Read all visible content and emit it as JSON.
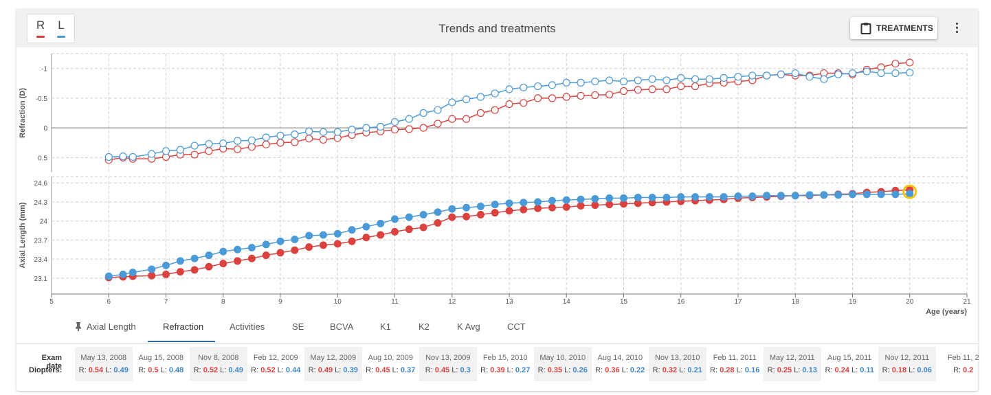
{
  "header": {
    "eye_right": "R",
    "eye_left": "L",
    "title": "Trends and treatments",
    "treatments_label": "TREATMENTS"
  },
  "colors": {
    "right_eye": "#d9423f",
    "left_eye": "#4a9ad8",
    "highlight": "#f4c20d"
  },
  "chart_data": {
    "type": "line",
    "xlabel": "Age (years)",
    "xlim": [
      5,
      21
    ],
    "x_ticks": [
      "5",
      "6",
      "7",
      "8",
      "9",
      "10",
      "11",
      "12",
      "13",
      "14",
      "15",
      "16",
      "17",
      "18",
      "19",
      "20",
      "21"
    ],
    "panels": [
      {
        "name": "refraction",
        "ylabel": "Refraction (D)",
        "ylim": [
          0.75,
          -1.25
        ],
        "y_ticks": [
          {
            "v": -1,
            "t": "-1"
          },
          {
            "v": -0.5,
            "t": "-0.5"
          },
          {
            "v": 0,
            "t": "0"
          },
          {
            "v": 0.5,
            "t": "0.5"
          }
        ],
        "marker": "open",
        "series": [
          {
            "name": "R",
            "x": [
              6,
              6.25,
              6.42,
              6.75,
              7,
              7.25,
              7.5,
              7.75,
              8,
              8.25,
              8.5,
              8.75,
              9,
              9.25,
              9.5,
              9.75,
              10,
              10.25,
              10.5,
              10.75,
              11,
              11.25,
              11.5,
              11.75,
              12,
              12.25,
              12.5,
              12.75,
              13,
              13.25,
              13.5,
              13.75,
              14,
              14.25,
              14.5,
              14.75,
              15,
              15.25,
              15.5,
              15.75,
              16,
              16.25,
              16.5,
              16.75,
              17,
              17.25,
              17.5,
              17.75,
              18,
              18.25,
              18.5,
              18.75,
              19,
              19.25,
              19.5,
              19.75,
              20
            ],
            "y": [
              0.54,
              0.5,
              0.52,
              0.52,
              0.49,
              0.45,
              0.45,
              0.39,
              0.35,
              0.36,
              0.32,
              0.28,
              0.25,
              0.24,
              0.18,
              0.2,
              0.17,
              0.12,
              0.08,
              0.06,
              0.03,
              0.02,
              0.0,
              -0.07,
              -0.15,
              -0.15,
              -0.25,
              -0.3,
              -0.4,
              -0.42,
              -0.5,
              -0.5,
              -0.52,
              -0.54,
              -0.55,
              -0.56,
              -0.62,
              -0.64,
              -0.65,
              -0.65,
              -0.7,
              -0.7,
              -0.75,
              -0.76,
              -0.78,
              -0.8,
              -0.88,
              -0.9,
              -0.88,
              -0.88,
              -0.92,
              -0.92,
              -0.9,
              -0.98,
              -1.02,
              -1.08,
              -1.1
            ]
          },
          {
            "name": "L",
            "x": [
              6,
              6.25,
              6.42,
              6.75,
              7,
              7.25,
              7.5,
              7.75,
              8,
              8.25,
              8.5,
              8.75,
              9,
              9.25,
              9.5,
              9.75,
              10,
              10.25,
              10.5,
              10.75,
              11,
              11.25,
              11.5,
              11.75,
              12,
              12.25,
              12.5,
              12.75,
              13,
              13.25,
              13.5,
              13.75,
              14,
              14.25,
              14.5,
              14.75,
              15,
              15.25,
              15.5,
              15.75,
              16,
              16.25,
              16.5,
              16.75,
              17,
              17.25,
              17.5,
              17.75,
              18,
              18.25,
              18.5,
              18.75,
              19,
              19.25,
              19.5,
              19.75,
              20
            ],
            "y": [
              0.49,
              0.48,
              0.49,
              0.44,
              0.39,
              0.37,
              0.3,
              0.27,
              0.26,
              0.22,
              0.21,
              0.16,
              0.13,
              0.11,
              0.06,
              0.07,
              0.07,
              0.03,
              0.0,
              -0.02,
              -0.1,
              -0.15,
              -0.25,
              -0.3,
              -0.43,
              -0.48,
              -0.52,
              -0.58,
              -0.65,
              -0.68,
              -0.7,
              -0.72,
              -0.76,
              -0.76,
              -0.78,
              -0.8,
              -0.78,
              -0.8,
              -0.82,
              -0.8,
              -0.84,
              -0.82,
              -0.82,
              -0.84,
              -0.86,
              -0.88,
              -0.88,
              -0.9,
              -0.92,
              -0.86,
              -0.82,
              -0.9,
              -0.92,
              -0.95,
              -0.92,
              -0.92,
              -0.93
            ]
          }
        ]
      },
      {
        "name": "axial_length",
        "ylabel": "Axial Length (mm)",
        "ylim": [
          22.85,
          24.7
        ],
        "y_ticks": [
          {
            "v": 23.1,
            "t": "23.1"
          },
          {
            "v": 23.4,
            "t": "23.4"
          },
          {
            "v": 23.7,
            "t": "23.7"
          },
          {
            "v": 24,
            "t": "24"
          },
          {
            "v": 24.3,
            "t": "24.3"
          },
          {
            "v": 24.6,
            "t": "24.6"
          }
        ],
        "marker": "filled",
        "series": [
          {
            "name": "R",
            "x": [
              6,
              6.25,
              6.42,
              6.75,
              7,
              7.25,
              7.5,
              7.75,
              8,
              8.25,
              8.5,
              8.75,
              9,
              9.25,
              9.5,
              9.75,
              10,
              10.25,
              10.5,
              10.75,
              11,
              11.25,
              11.5,
              11.75,
              12,
              12.25,
              12.5,
              12.75,
              13,
              13.25,
              13.5,
              13.75,
              14,
              14.25,
              14.5,
              14.75,
              15,
              15.25,
              15.5,
              15.75,
              16,
              16.25,
              16.5,
              16.75,
              17,
              17.25,
              17.5,
              17.75,
              18,
              18.25,
              18.5,
              18.75,
              19,
              19.25,
              19.5,
              19.75,
              20
            ],
            "y": [
              23.11,
              23.12,
              23.13,
              23.14,
              23.16,
              23.2,
              23.23,
              23.28,
              23.33,
              23.37,
              23.41,
              23.46,
              23.5,
              23.54,
              23.59,
              23.62,
              23.64,
              23.68,
              23.74,
              23.78,
              23.83,
              23.87,
              23.9,
              23.97,
              24.06,
              24.07,
              24.1,
              24.13,
              24.16,
              24.18,
              24.2,
              24.21,
              24.22,
              24.24,
              24.25,
              24.26,
              24.27,
              24.28,
              24.29,
              24.3,
              24.31,
              24.32,
              24.33,
              24.34,
              24.36,
              24.37,
              24.38,
              24.39,
              24.4,
              24.4,
              24.41,
              24.42,
              24.43,
              24.45,
              24.46,
              24.48,
              24.49
            ]
          },
          {
            "name": "L",
            "x": [
              6,
              6.25,
              6.42,
              6.75,
              7,
              7.25,
              7.5,
              7.75,
              8,
              8.25,
              8.5,
              8.75,
              9,
              9.25,
              9.5,
              9.75,
              10,
              10.25,
              10.5,
              10.75,
              11,
              11.25,
              11.5,
              11.75,
              12,
              12.25,
              12.5,
              12.75,
              13,
              13.25,
              13.5,
              13.75,
              14,
              14.25,
              14.5,
              14.75,
              15,
              15.25,
              15.5,
              15.75,
              16,
              16.25,
              16.5,
              16.75,
              17,
              17.25,
              17.5,
              17.75,
              18,
              18.25,
              18.5,
              18.75,
              19,
              19.25,
              19.5,
              19.75,
              20
            ],
            "y": [
              23.13,
              23.16,
              23.19,
              23.24,
              23.3,
              23.37,
              23.41,
              23.46,
              23.52,
              23.55,
              23.58,
              23.63,
              23.68,
              23.71,
              23.77,
              23.78,
              23.8,
              23.86,
              23.91,
              23.96,
              24.03,
              24.06,
              24.1,
              24.14,
              24.19,
              24.21,
              24.23,
              24.26,
              24.28,
              24.29,
              24.3,
              24.32,
              24.33,
              24.34,
              24.35,
              24.36,
              24.36,
              24.37,
              24.37,
              24.37,
              24.38,
              24.38,
              24.38,
              24.38,
              24.39,
              24.39,
              24.4,
              24.4,
              24.4,
              24.41,
              24.41,
              24.41,
              24.42,
              24.42,
              24.42,
              24.42,
              24.43
            ]
          }
        ]
      }
    ]
  },
  "tabs": [
    {
      "label": "Axial Length",
      "pinned": true
    },
    {
      "label": "Refraction",
      "active": true
    },
    {
      "label": "Activities"
    },
    {
      "label": "SE"
    },
    {
      "label": "BCVA"
    },
    {
      "label": "K1"
    },
    {
      "label": "K2"
    },
    {
      "label": "K Avg"
    },
    {
      "label": "CCT"
    }
  ],
  "table": {
    "exam_date_label": "Exam date",
    "diopters_label": "Diopters:",
    "r_prefix": "R: ",
    "l_prefix": " L: ",
    "columns": [
      {
        "date": "May 13, 2008",
        "r": "0.54",
        "l": "0.49"
      },
      {
        "date": "Aug 15, 2008",
        "r": "0.5",
        "l": "0.48"
      },
      {
        "date": "Nov 8, 2008",
        "r": "0.52",
        "l": "0.49"
      },
      {
        "date": "Feb 12, 2009",
        "r": "0.52",
        "l": "0.44"
      },
      {
        "date": "May 12, 2009",
        "r": "0.49",
        "l": "0.39"
      },
      {
        "date": "Aug 10, 2009",
        "r": "0.45",
        "l": "0.37"
      },
      {
        "date": "Nov 13, 2009",
        "r": "0.45",
        "l": "0.3"
      },
      {
        "date": "Feb 15, 2010",
        "r": "0.39",
        "l": "0.27"
      },
      {
        "date": "May 10, 2010",
        "r": "0.35",
        "l": "0.26"
      },
      {
        "date": "Aug 14, 2010",
        "r": "0.36",
        "l": "0.22"
      },
      {
        "date": "Nov 13, 2010",
        "r": "0.32",
        "l": "0.21"
      },
      {
        "date": "Feb 11, 2011",
        "r": "0.28",
        "l": "0.16"
      },
      {
        "date": "May 12, 2011",
        "r": "0.25",
        "l": "0.13"
      },
      {
        "date": "Aug 15, 2011",
        "r": "0.24",
        "l": "0.11"
      },
      {
        "date": "Nov 12, 2011",
        "r": "0.18",
        "l": "0.06"
      },
      {
        "date": "Feb 11, 2",
        "r": "0.2",
        "l": ""
      }
    ]
  }
}
